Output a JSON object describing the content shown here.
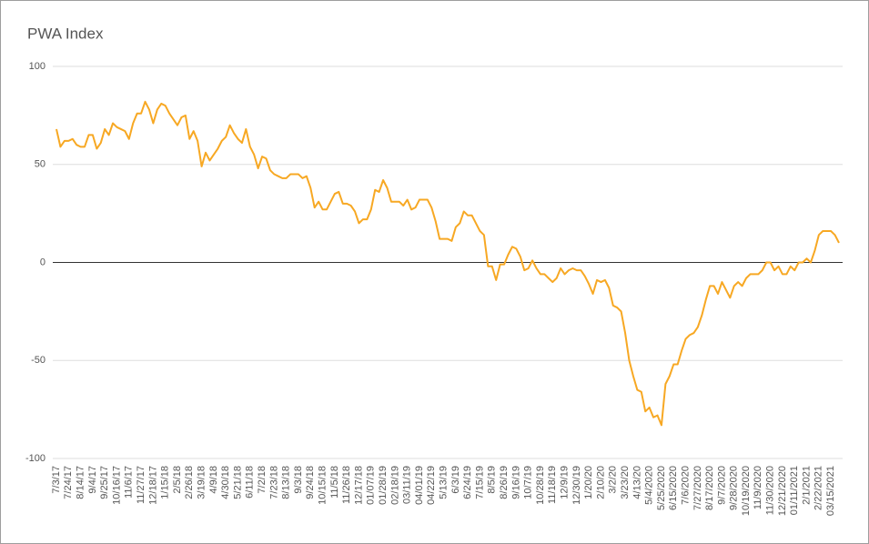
{
  "chart_data": {
    "type": "line",
    "title": "PWA Index",
    "categories": [
      "7/3/17",
      null,
      null,
      "7/24/17",
      null,
      null,
      "8/14/17",
      null,
      null,
      "9/4/17",
      null,
      null,
      "9/25/17",
      null,
      null,
      "10/16/17",
      null,
      null,
      "11/6/17",
      null,
      null,
      "11/27/17",
      null,
      null,
      "12/18/17",
      null,
      null,
      "1/15/18",
      null,
      null,
      "2/5/18",
      null,
      null,
      "2/26/18",
      null,
      null,
      "3/19/18",
      null,
      null,
      "4/9/18",
      null,
      null,
      "4/30/18",
      null,
      null,
      "5/21/18",
      null,
      null,
      "6/11/18",
      null,
      null,
      "7/2/18",
      null,
      null,
      "7/23/18",
      null,
      null,
      "8/13/18",
      null,
      null,
      "9/3/18",
      null,
      null,
      "9/24/18",
      null,
      null,
      "10/15/18",
      null,
      null,
      "11/5/18",
      null,
      null,
      "11/26/18",
      null,
      null,
      "12/17/18",
      null,
      null,
      "01/07/19",
      null,
      null,
      "01/28/19",
      null,
      null,
      "02/18/19",
      null,
      null,
      "03/11/19",
      null,
      null,
      "04/01/19",
      null,
      null,
      "04/22/19",
      null,
      null,
      "5/13/19",
      null,
      null,
      "6/3/19",
      null,
      null,
      "6/24/19",
      null,
      null,
      "7/15/19",
      null,
      null,
      "8/5/19",
      null,
      null,
      "8/26/19",
      null,
      null,
      "9/16/19",
      null,
      null,
      "10/7/19",
      null,
      null,
      "10/28/19",
      null,
      null,
      "11/18/19",
      null,
      null,
      "12/9/19",
      null,
      null,
      "12/30/19",
      null,
      null,
      "1/20/20",
      null,
      null,
      "2/10/20",
      null,
      null,
      "3/2/20",
      null,
      null,
      "3/23/20",
      null,
      null,
      "4/13/20",
      null,
      null,
      "5/4/2020",
      null,
      null,
      "5/25/2020",
      null,
      null,
      "6/15/2020",
      null,
      null,
      "7/6/2020",
      null,
      null,
      "7/27/2020",
      null,
      null,
      "8/17/2020",
      null,
      null,
      "9/7/2020",
      null,
      null,
      "9/28/2020",
      null,
      null,
      "10/19/2020",
      null,
      null,
      "11/9/2020",
      null,
      null,
      "11/30/2020",
      null,
      null,
      "12/21/2020",
      null,
      null,
      "01/11/2021",
      null,
      null,
      "2/1/2021",
      null,
      null,
      "2/22/2021",
      null,
      null,
      "03/15/2021",
      null,
      null
    ],
    "series": [
      {
        "name": "PWA Index",
        "color": "#f7a823",
        "values": [
          68,
          59,
          62,
          62,
          63,
          60,
          59,
          59,
          65,
          65,
          58,
          61,
          68,
          65,
          71,
          69,
          68,
          67,
          63,
          71,
          76,
          76,
          82,
          78,
          71,
          78,
          81,
          80,
          76,
          73,
          70,
          74,
          75,
          63,
          67,
          62,
          49,
          56,
          52,
          55,
          58,
          62,
          64,
          70,
          66,
          63,
          61,
          68,
          59,
          55,
          48,
          54,
          53,
          47,
          45,
          44,
          43,
          43,
          45,
          45,
          45,
          43,
          44,
          38,
          28,
          31,
          27,
          27,
          31,
          35,
          36,
          30,
          30,
          29,
          26,
          20,
          22,
          22,
          27,
          37,
          36,
          42,
          38,
          31,
          31,
          31,
          29,
          32,
          27,
          28,
          32,
          32,
          32,
          28,
          21,
          12,
          12,
          12,
          11,
          18,
          20,
          26,
          24,
          24,
          20,
          16,
          14,
          -2,
          -2,
          -9,
          -1,
          -1,
          4,
          8,
          7,
          3,
          -4,
          -3,
          1,
          -3,
          -6,
          -6,
          -8,
          -10,
          -8,
          -3,
          -6,
          -4,
          -3,
          -4,
          -4,
          -7,
          -11,
          -16,
          -9,
          -10,
          -9,
          -13,
          -22,
          -23,
          -25,
          -36,
          -50,
          -58,
          -65,
          -66,
          -76,
          -74,
          -79,
          -78,
          -83,
          -62,
          -58,
          -52,
          -52,
          -45,
          -39,
          -37,
          -36,
          -33,
          -27,
          -19,
          -12,
          -12,
          -16,
          -10,
          -14,
          -18,
          -12,
          -10,
          -12,
          -8,
          -6,
          -6,
          -6,
          -4,
          0,
          0,
          -4,
          -2,
          -6,
          -6,
          -2,
          -4,
          0,
          0,
          2,
          0,
          6,
          14,
          16,
          16,
          16,
          14,
          10
        ]
      }
    ],
    "ylim": [
      -100,
      100
    ],
    "yticks": [
      -100,
      -50,
      0,
      50,
      100
    ],
    "grid": true
  }
}
